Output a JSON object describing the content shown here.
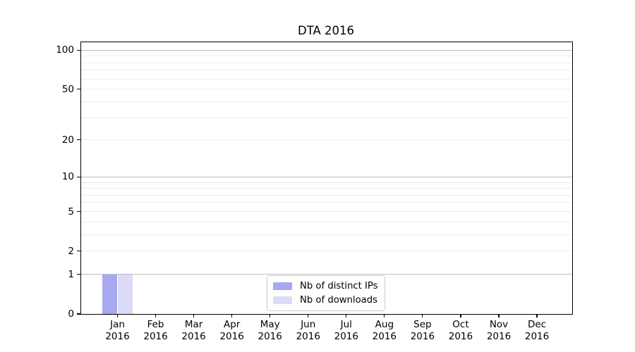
{
  "chart_data": {
    "type": "bar",
    "title": "DTA 2016",
    "categories": [
      {
        "month": "Jan",
        "year": "2016"
      },
      {
        "month": "Feb",
        "year": "2016"
      },
      {
        "month": "Mar",
        "year": "2016"
      },
      {
        "month": "Apr",
        "year": "2016"
      },
      {
        "month": "May",
        "year": "2016"
      },
      {
        "month": "Jun",
        "year": "2016"
      },
      {
        "month": "Jul",
        "year": "2016"
      },
      {
        "month": "Aug",
        "year": "2016"
      },
      {
        "month": "Sep",
        "year": "2016"
      },
      {
        "month": "Oct",
        "year": "2016"
      },
      {
        "month": "Nov",
        "year": "2016"
      },
      {
        "month": "Dec",
        "year": "2016"
      }
    ],
    "series": [
      {
        "name": "Nb of distinct IPs",
        "color": "#a8a8f0",
        "values": [
          1,
          0,
          0,
          0,
          0,
          0,
          0,
          0,
          0,
          0,
          0,
          0
        ]
      },
      {
        "name": "Nb of downloads",
        "color": "#dbdbf8",
        "values": [
          1,
          0,
          0,
          0,
          0,
          0,
          0,
          0,
          0,
          0,
          0,
          0
        ]
      }
    ],
    "xlabel": "",
    "ylabel": "",
    "yscale": "log1p",
    "ylim": [
      0,
      115
    ],
    "yticks": [
      0,
      1,
      2,
      5,
      10,
      20,
      50,
      100
    ],
    "grid": {
      "on": true,
      "major_lines": [
        1,
        10,
        100
      ],
      "minor_lines": [
        2,
        3,
        4,
        5,
        6,
        7,
        8,
        9,
        20,
        30,
        40,
        50,
        60,
        70,
        80,
        90
      ]
    },
    "legend": {
      "position": "lower center"
    },
    "colors": {
      "major_grid": "#bdbdbd",
      "minor_grid": "#ededed",
      "axis": "#000000",
      "background": "#ffffff"
    }
  }
}
